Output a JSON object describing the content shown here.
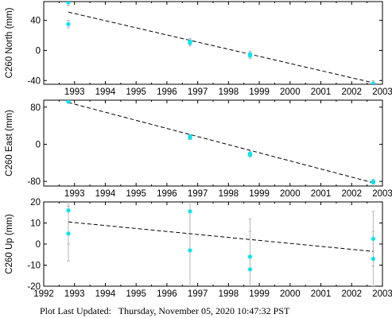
{
  "footer": {
    "label": "Plot Last Updated:",
    "timestamp": "Thursday, November 05, 2020 10:47:32 PST"
  },
  "chart_data": [
    {
      "type": "scatter",
      "ylabel": "C260 North (mm)",
      "xlim": [
        1992,
        2003
      ],
      "ylim": [
        -45,
        65
      ],
      "xticks": [
        1993,
        1994,
        1995,
        1996,
        1997,
        1998,
        1999,
        2000,
        2001,
        2002,
        2003
      ],
      "yticks": [
        -40,
        0,
        40
      ],
      "grid": false,
      "points": [
        {
          "x": 1992.8,
          "y": 64,
          "err": 4
        },
        {
          "x": 1992.8,
          "y": 35,
          "err": 5
        },
        {
          "x": 1996.75,
          "y": 12,
          "err": 4
        },
        {
          "x": 1996.75,
          "y": 10,
          "err": 4
        },
        {
          "x": 1998.7,
          "y": -5,
          "err": 4
        },
        {
          "x": 1998.7,
          "y": -7,
          "err": 4
        },
        {
          "x": 2002.7,
          "y": -44,
          "err": 4
        },
        {
          "x": 2002.7,
          "y": -46,
          "err": 4
        }
      ],
      "trend": [
        [
          1992.8,
          51
        ],
        [
          2002.7,
          -43
        ]
      ]
    },
    {
      "type": "scatter",
      "ylabel": "C260 East (mm)",
      "xlim": [
        1992,
        2003
      ],
      "ylim": [
        -90,
        95
      ],
      "xticks": [
        1993,
        1994,
        1995,
        1996,
        1997,
        1998,
        1999,
        2000,
        2001,
        2002,
        2003
      ],
      "yticks": [
        -80,
        0,
        80
      ],
      "grid": false,
      "points": [
        {
          "x": 1992.8,
          "y": 92,
          "err": 4
        },
        {
          "x": 1996.75,
          "y": 17,
          "err": 4
        },
        {
          "x": 1996.75,
          "y": 14,
          "err": 4
        },
        {
          "x": 1998.7,
          "y": -20,
          "err": 4
        },
        {
          "x": 1998.7,
          "y": -23,
          "err": 4
        },
        {
          "x": 2002.7,
          "y": -80,
          "err": 4
        },
        {
          "x": 2002.7,
          "y": -82,
          "err": 4
        }
      ],
      "trend": [
        [
          1992.8,
          90
        ],
        [
          2002.7,
          -83
        ]
      ]
    },
    {
      "type": "scatter",
      "ylabel": "C260 Up (mm)",
      "xlim": [
        1992,
        2003
      ],
      "ylim": [
        -20,
        20
      ],
      "xticks": [
        1992,
        1993,
        1994,
        1995,
        1996,
        1997,
        1998,
        1999,
        2000,
        2001,
        2002,
        2003
      ],
      "yticks": [
        -20,
        -10,
        0,
        10,
        20
      ],
      "grid": false,
      "points": [
        {
          "x": 1992.8,
          "y": 16,
          "err": 16
        },
        {
          "x": 1992.8,
          "y": 5,
          "err": 13
        },
        {
          "x": 1996.75,
          "y": 15.5,
          "err": 18
        },
        {
          "x": 1996.75,
          "y": -3,
          "err": 18
        },
        {
          "x": 1998.7,
          "y": -6,
          "err": 18
        },
        {
          "x": 1998.7,
          "y": -12,
          "err": 18
        },
        {
          "x": 2002.7,
          "y": 2.5,
          "err": 13
        },
        {
          "x": 2002.7,
          "y": -7,
          "err": 13
        }
      ],
      "trend": [
        [
          1992.8,
          10.5
        ],
        [
          2002.7,
          -3.5
        ]
      ]
    }
  ]
}
